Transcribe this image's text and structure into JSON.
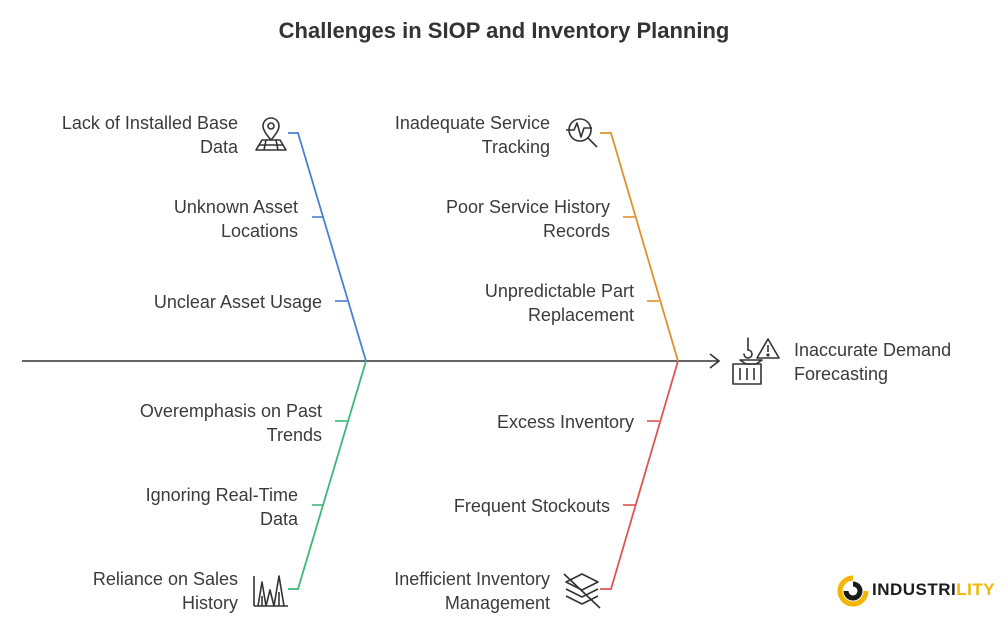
{
  "title": "Challenges in SIOP and Inventory Planning",
  "effect": {
    "label": "Inaccurate Demand\nForecasting",
    "icons": [
      "hook-icon",
      "warning-icon",
      "crate-icon"
    ]
  },
  "branches": {
    "top_left": {
      "color": "#4a7fd6",
      "causes": [
        {
          "label": "Lack of Installed Base\nData",
          "icon": "map-pin-icon"
        },
        {
          "label": "Unknown Asset\nLocations"
        },
        {
          "label": "Unclear Asset Usage"
        }
      ]
    },
    "top_right": {
      "color": "#e0902e",
      "causes": [
        {
          "label": "Inadequate Service\nTracking",
          "icon": "heartbeat-magnifier-icon"
        },
        {
          "label": "Poor Service History\nRecords"
        },
        {
          "label": "Unpredictable Part\nReplacement"
        }
      ]
    },
    "bottom_left": {
      "color": "#3cb878",
      "causes": [
        {
          "label": "Overemphasis on Past\nTrends"
        },
        {
          "label": "Ignoring Real-Time\nData"
        },
        {
          "label": "Reliance on Sales\nHistory",
          "icon": "bar-peaks-icon"
        }
      ]
    },
    "bottom_right": {
      "color": "#e05454",
      "causes": [
        {
          "label": "Excess Inventory"
        },
        {
          "label": "Frequent Stockouts"
        },
        {
          "label": "Inefficient Inventory\nManagement",
          "icon": "stacked-layers-crossed-icon"
        }
      ]
    }
  },
  "logo": {
    "text_main": "INDUSTRI",
    "text_accent": "LITY",
    "accent_color": "#f2b600"
  }
}
